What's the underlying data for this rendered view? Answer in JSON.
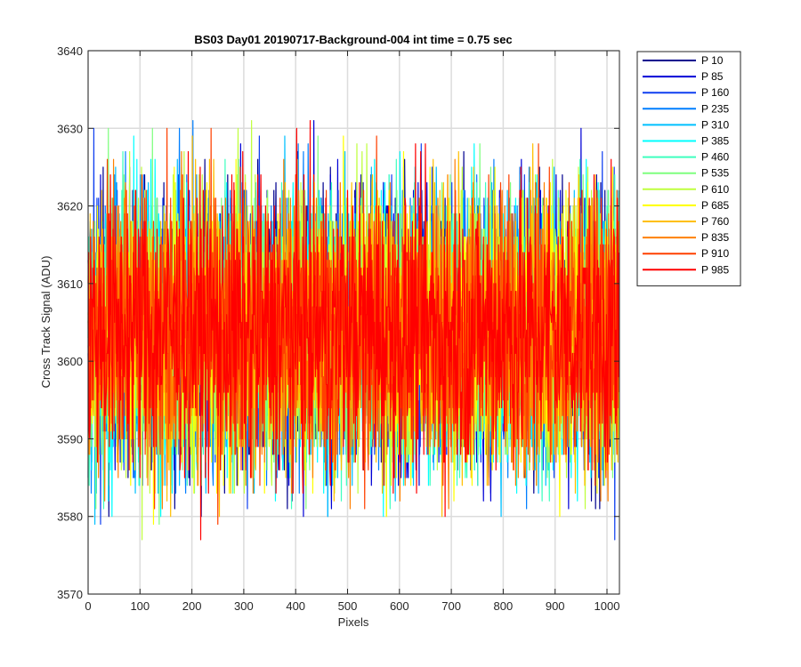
{
  "chart_data": {
    "type": "line",
    "title": "BS03 Day01 20190717-Background-004 int time = 0.75 sec",
    "xlabel": "Pixels",
    "ylabel": "Cross Track Signal (ADU)",
    "xlim": [
      0,
      1024
    ],
    "ylim": [
      3570,
      3640
    ],
    "xticks": [
      0,
      100,
      200,
      300,
      400,
      500,
      600,
      700,
      800,
      900,
      1000
    ],
    "yticks": [
      3570,
      3580,
      3590,
      3600,
      3610,
      3620,
      3630,
      3640
    ],
    "grid": true,
    "legend_position": "outside-top-right",
    "noise": {
      "mean": 3604,
      "typical_range": [
        3586,
        3624
      ],
      "observed_range": [
        3576,
        3634
      ]
    },
    "series": [
      {
        "name": "P 10",
        "color": "#00008f"
      },
      {
        "name": "P 85",
        "color": "#0000d6"
      },
      {
        "name": "P 160",
        "color": "#0f3ff0"
      },
      {
        "name": "P 235",
        "color": "#007fff"
      },
      {
        "name": "P 310",
        "color": "#00c0ff"
      },
      {
        "name": "P 385",
        "color": "#00ffff"
      },
      {
        "name": "P 460",
        "color": "#3fffbf"
      },
      {
        "name": "P 535",
        "color": "#7fff7f"
      },
      {
        "name": "P 610",
        "color": "#bfff3f"
      },
      {
        "name": "P 685",
        "color": "#ffff00"
      },
      {
        "name": "P 760",
        "color": "#ffbf00"
      },
      {
        "name": "P 835",
        "color": "#ff8000"
      },
      {
        "name": "P 910",
        "color": "#ff4000"
      },
      {
        "name": "P 985",
        "color": "#ff0000"
      }
    ]
  }
}
